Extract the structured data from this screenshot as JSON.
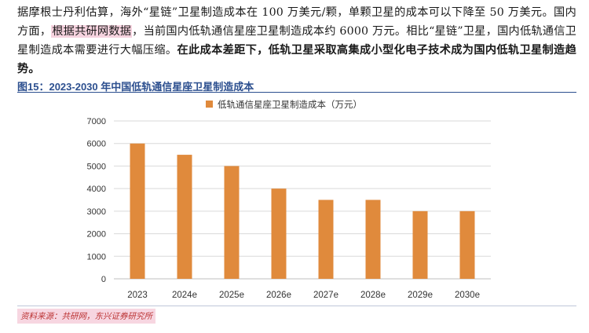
{
  "paragraph": {
    "part1": "据摩根士丹利估算，海外“星链”卫星制造成本在 100 万美元/颗，单颗卫星的成本可以下降至 50 万美元。国内方面，",
    "highlight": "根据共研网数据",
    "part2": "，当前国内低轨通信星座卫星制造成本约 6000 万元。相比“星链”卫星，国内低轨通信卫星制造成本需要进行大幅压缩。",
    "bold": "在此成本差距下，低轨卫星采取高集成小型化电子技术成为国内低轨卫星制造趋势。"
  },
  "figure_title": "图15：2023-2030 年中国低轨通信星座卫星制造成本",
  "source": "资料来源：共研网，东兴证券研究所",
  "colors": {
    "bar": "#e08a3c",
    "title": "#2c4f8f",
    "grid": "#d9d9d9"
  },
  "chart_data": {
    "type": "bar",
    "legend_position": "top",
    "legend": "低轨通信星座卫星制造成本（万元）",
    "categories": [
      "2023",
      "2024e",
      "2025e",
      "2026e",
      "2027e",
      "2028e",
      "2029e",
      "2030e"
    ],
    "values": [
      6000,
      5500,
      5000,
      4000,
      3500,
      3500,
      3000,
      3000
    ],
    "yticks": [
      "0",
      "1000",
      "2000",
      "3000",
      "4000",
      "5000",
      "6000",
      "7000"
    ],
    "ylim": [
      0,
      7000
    ],
    "grid": true
  }
}
